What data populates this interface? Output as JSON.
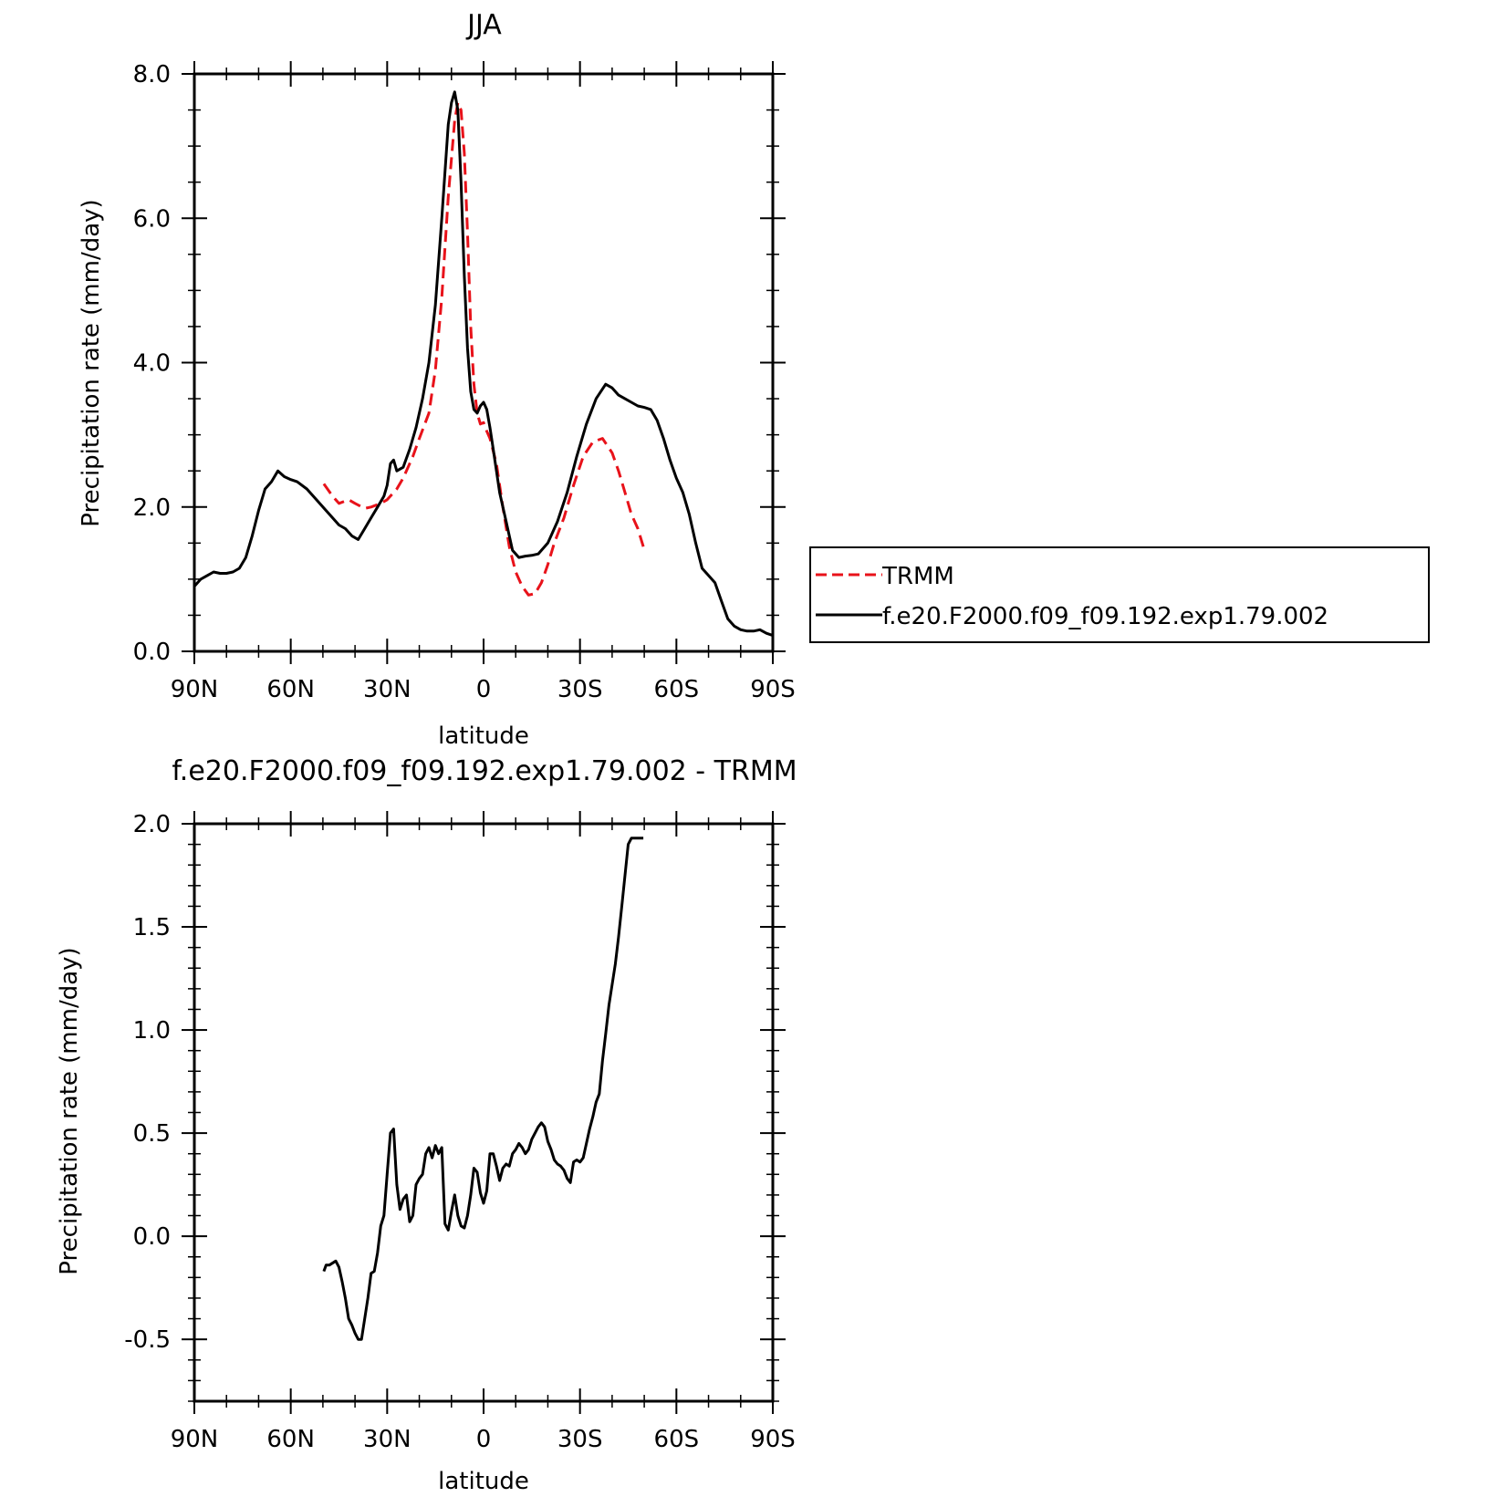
{
  "chart_data": [
    {
      "type": "line",
      "title": "JJA",
      "xlabel": "latitude",
      "ylabel": "Precipitation rate (mm/day)",
      "xlim": [
        90,
        -90
      ],
      "ylim": [
        0,
        8
      ],
      "x_ticks": [
        {
          "value": 90,
          "label": "90N"
        },
        {
          "value": 60,
          "label": "60N"
        },
        {
          "value": 30,
          "label": "30N"
        },
        {
          "value": 0,
          "label": "0"
        },
        {
          "value": -30,
          "label": "30S"
        },
        {
          "value": -60,
          "label": "60S"
        },
        {
          "value": -90,
          "label": "90S"
        }
      ],
      "y_ticks": [
        {
          "value": 0,
          "label": "0.0"
        },
        {
          "value": 2,
          "label": "2.0"
        },
        {
          "value": 4,
          "label": "4.0"
        },
        {
          "value": 6,
          "label": "6.0"
        },
        {
          "value": 8,
          "label": "8.0"
        }
      ],
      "grid": false,
      "legend_position": "right",
      "series": [
        {
          "name": "TRMM",
          "color": "#e8121a",
          "style": "dashed",
          "x": [
            49.7,
            47,
            45,
            42,
            40,
            37,
            35,
            32,
            30,
            27,
            25,
            22,
            20,
            17,
            15,
            13,
            11,
            9,
            8,
            7,
            6,
            5,
            4,
            3,
            2,
            1,
            0,
            -1,
            -2,
            -4,
            -6,
            -8,
            -10,
            -12,
            -14,
            -16,
            -18,
            -20,
            -22,
            -25,
            -28,
            -31,
            -34,
            -37,
            -40,
            -42,
            -44,
            -46,
            -48,
            -49.7
          ],
          "y": [
            2.32,
            2.15,
            2.05,
            2.1,
            2.05,
            1.98,
            2.0,
            2.05,
            2.1,
            2.25,
            2.4,
            2.7,
            2.95,
            3.3,
            3.9,
            4.9,
            6.3,
            7.35,
            7.6,
            7.5,
            6.9,
            5.8,
            4.5,
            3.7,
            3.3,
            3.15,
            3.17,
            3.05,
            2.95,
            2.6,
            2.0,
            1.45,
            1.1,
            0.9,
            0.78,
            0.8,
            0.95,
            1.2,
            1.5,
            1.85,
            2.3,
            2.7,
            2.9,
            2.95,
            2.75,
            2.5,
            2.2,
            1.9,
            1.7,
            1.45
          ]
        },
        {
          "name": "f.e20.F2000.f09_f09.192.exp1.79.002",
          "color": "#000000",
          "style": "solid",
          "x": [
            90,
            88,
            86,
            84,
            82,
            80,
            78,
            76,
            74,
            72,
            70,
            68,
            66,
            64,
            62,
            60,
            58,
            55,
            52,
            50,
            47,
            45,
            43,
            41,
            39,
            37,
            35,
            33,
            31,
            30,
            29,
            28,
            27,
            25,
            23,
            21,
            19,
            17,
            15,
            13,
            11,
            10,
            9,
            8,
            7,
            6,
            5,
            4,
            3,
            2,
            1,
            0,
            -1,
            -2,
            -3,
            -4,
            -5,
            -7,
            -9,
            -11,
            -13,
            -15,
            -17,
            -20,
            -23,
            -26,
            -29,
            -32,
            -35,
            -38,
            -40,
            -42,
            -44,
            -46,
            -48,
            -50,
            -52,
            -54,
            -56,
            -58,
            -60,
            -62,
            -64,
            -66,
            -68,
            -70,
            -72,
            -74,
            -76,
            -78,
            -80,
            -82,
            -84,
            -86,
            -88,
            -90
          ],
          "y": [
            0.9,
            1.0,
            1.05,
            1.1,
            1.08,
            1.08,
            1.1,
            1.15,
            1.3,
            1.6,
            1.95,
            2.25,
            2.35,
            2.5,
            2.42,
            2.38,
            2.35,
            2.25,
            2.1,
            2.0,
            1.85,
            1.75,
            1.7,
            1.6,
            1.55,
            1.7,
            1.85,
            2.0,
            2.15,
            2.3,
            2.6,
            2.65,
            2.5,
            2.55,
            2.8,
            3.1,
            3.5,
            4.0,
            4.8,
            6.0,
            7.3,
            7.6,
            7.75,
            7.5,
            6.5,
            5.2,
            4.2,
            3.6,
            3.35,
            3.3,
            3.4,
            3.45,
            3.35,
            3.1,
            2.8,
            2.5,
            2.2,
            1.8,
            1.4,
            1.3,
            1.32,
            1.33,
            1.35,
            1.5,
            1.8,
            2.2,
            2.7,
            3.15,
            3.5,
            3.7,
            3.65,
            3.55,
            3.5,
            3.45,
            3.4,
            3.38,
            3.35,
            3.2,
            2.95,
            2.65,
            2.4,
            2.2,
            1.9,
            1.5,
            1.15,
            1.05,
            0.95,
            0.7,
            0.45,
            0.35,
            0.3,
            0.28,
            0.28,
            0.3,
            0.25,
            0.22
          ]
        }
      ]
    },
    {
      "type": "line",
      "title": "f.e20.F2000.f09_f09.192.exp1.79.002 - TRMM",
      "xlabel": "latitude",
      "ylabel": "Precipitation rate (mm/day)",
      "xlim": [
        90,
        -90
      ],
      "ylim": [
        -0.8,
        2.0
      ],
      "x_ticks": [
        {
          "value": 90,
          "label": "90N"
        },
        {
          "value": 60,
          "label": "60N"
        },
        {
          "value": 30,
          "label": "30N"
        },
        {
          "value": 0,
          "label": "0"
        },
        {
          "value": -30,
          "label": "30S"
        },
        {
          "value": -60,
          "label": "60S"
        },
        {
          "value": -90,
          "label": "90S"
        }
      ],
      "y_ticks": [
        {
          "value": -0.5,
          "label": "-0.5"
        },
        {
          "value": 0,
          "label": "0.0"
        },
        {
          "value": 0.5,
          "label": "0.5"
        },
        {
          "value": 1.0,
          "label": "1.0"
        },
        {
          "value": 1.5,
          "label": "1.5"
        },
        {
          "value": 2.0,
          "label": "2.0"
        }
      ],
      "grid": false,
      "series": [
        {
          "color": "#000000",
          "style": "solid",
          "x": [
            49.7,
            49,
            48,
            46,
            45,
            44,
            43,
            42,
            41,
            40,
            39,
            38,
            37,
            36,
            35,
            34,
            33,
            32,
            31,
            30,
            29,
            28,
            27,
            26,
            25,
            24,
            23,
            22,
            21,
            20,
            19,
            18,
            17,
            16,
            15,
            14,
            13,
            12,
            11,
            10,
            9,
            8,
            7,
            6,
            5,
            4,
            3,
            2,
            1,
            0,
            -1,
            -2,
            -3,
            -4,
            -5,
            -6,
            -7,
            -8,
            -9,
            -10,
            -11,
            -12,
            -13,
            -14,
            -15,
            -16,
            -17,
            -18,
            -19,
            -20,
            -21,
            -22,
            -23,
            -24,
            -25,
            -26,
            -27,
            -28,
            -29,
            -30,
            -31,
            -32,
            -33,
            -34,
            -35,
            -36,
            -37,
            -38,
            -39,
            -40,
            -41,
            -42,
            -43,
            -44,
            -45,
            -46,
            -47,
            -48,
            -49,
            -49.7
          ],
          "y": [
            -0.17,
            -0.14,
            -0.14,
            -0.12,
            -0.15,
            -0.22,
            -0.3,
            -0.4,
            -0.43,
            -0.47,
            -0.5,
            -0.5,
            -0.4,
            -0.3,
            -0.18,
            -0.17,
            -0.08,
            0.05,
            0.1,
            0.3,
            0.5,
            0.52,
            0.25,
            0.13,
            0.18,
            0.2,
            0.07,
            0.1,
            0.25,
            0.28,
            0.3,
            0.4,
            0.43,
            0.38,
            0.44,
            0.4,
            0.43,
            0.06,
            0.03,
            0.12,
            0.2,
            0.1,
            0.05,
            0.04,
            0.1,
            0.2,
            0.33,
            0.31,
            0.21,
            0.16,
            0.22,
            0.4,
            0.4,
            0.34,
            0.27,
            0.33,
            0.35,
            0.34,
            0.4,
            0.42,
            0.45,
            0.43,
            0.4,
            0.42,
            0.47,
            0.5,
            0.53,
            0.55,
            0.53,
            0.46,
            0.42,
            0.37,
            0.35,
            0.34,
            0.32,
            0.28,
            0.26,
            0.36,
            0.37,
            0.36,
            0.38,
            0.45,
            0.52,
            0.58,
            0.65,
            0.69,
            0.85,
            0.98,
            1.12,
            1.22,
            1.32,
            1.45,
            1.6,
            1.75,
            1.9,
            1.93,
            1.93,
            1.93,
            1.93,
            1.93
          ]
        }
      ]
    }
  ]
}
